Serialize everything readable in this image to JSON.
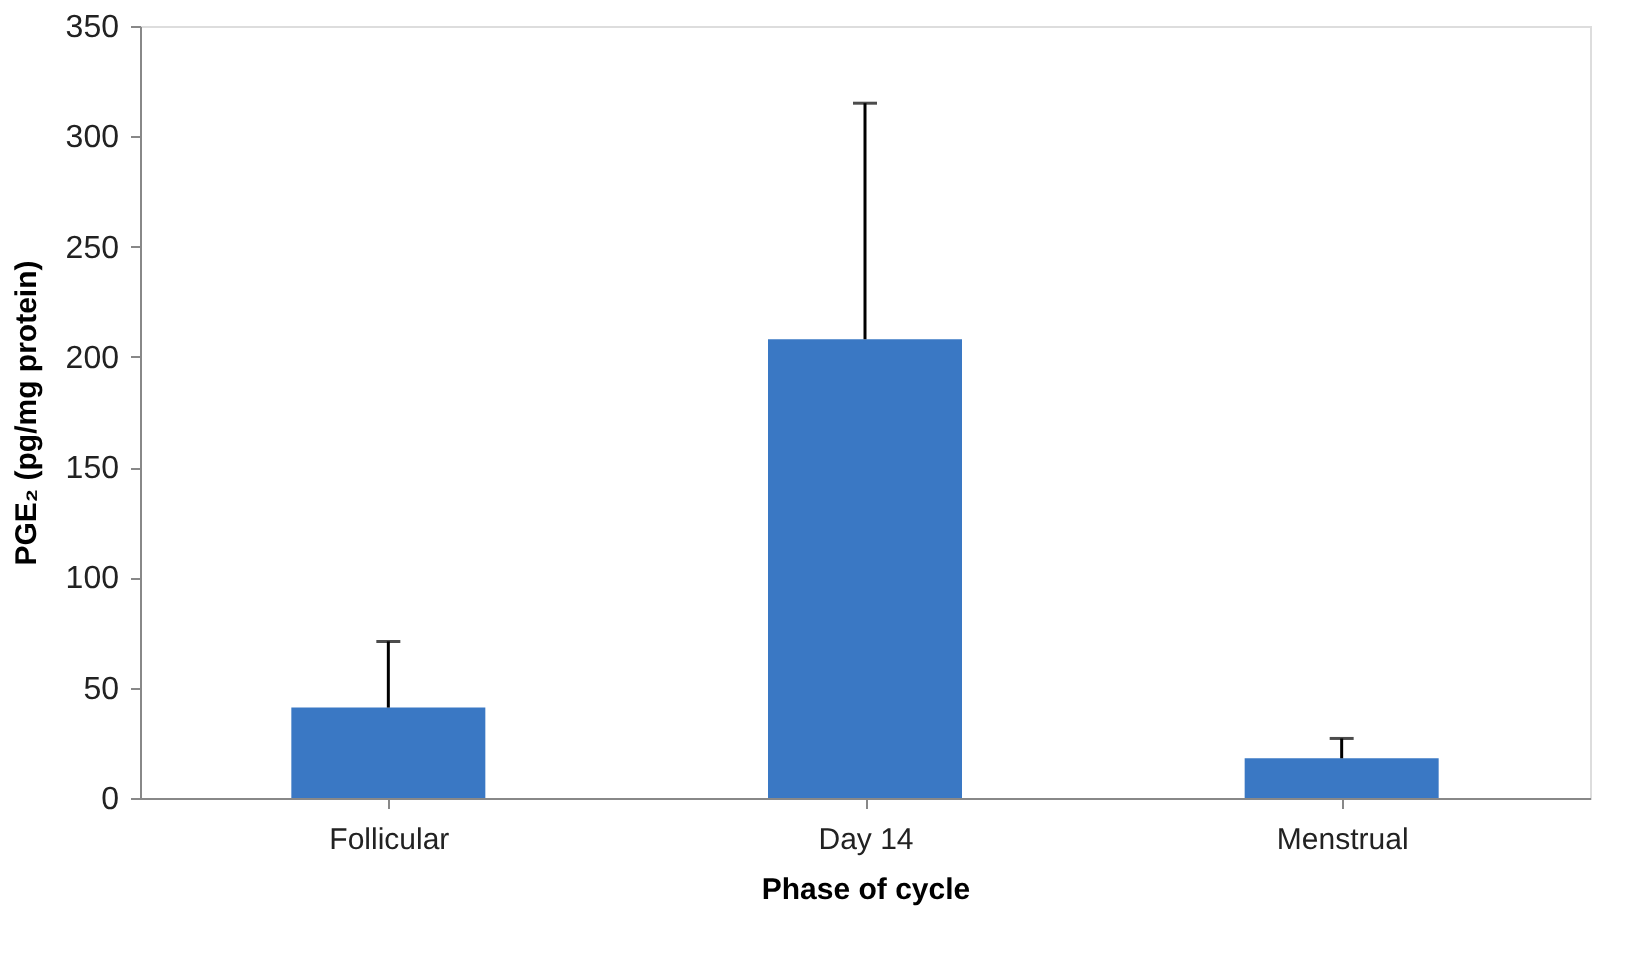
{
  "chart_data": {
    "type": "bar",
    "xlabel": "Phase of cycle",
    "ylabel": "PGE₂ (pg/mg protein)",
    "categories": [
      "Follicular",
      "Day 14",
      "Menstrual"
    ],
    "values": [
      41,
      208,
      18
    ],
    "errors": [
      [
        41,
        71
      ],
      [
        208,
        315
      ],
      [
        18,
        27
      ]
    ],
    "color": "#3a78c4",
    "ylim": [
      0,
      350
    ],
    "yticks": [
      0,
      50,
      100,
      150,
      200,
      250,
      300,
      350
    ],
    "grid": false
  }
}
